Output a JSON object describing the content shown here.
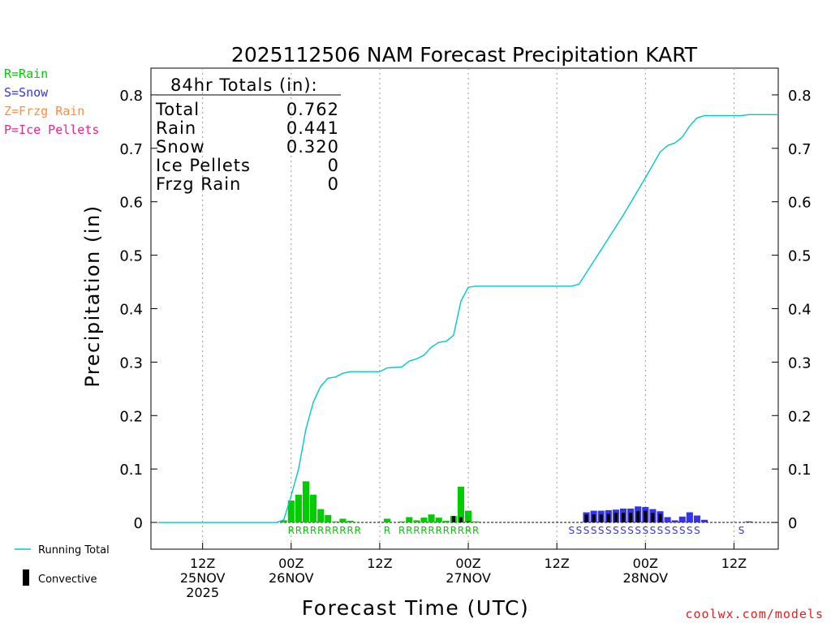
{
  "chart_data": {
    "type": "bar",
    "title": "2025112506 NAM Forecast Precipitation KART",
    "xlabel": "Forecast Time (UTC)",
    "ylabel": "Precipitation (in)",
    "ylim": [
      -0.05,
      0.85
    ],
    "y_ticks": [
      0,
      0.1,
      0.2,
      0.3,
      0.4,
      0.5,
      0.6,
      0.7,
      0.8
    ],
    "y_tick_labels": [
      "0",
      "0.1",
      "0.2",
      "0.3",
      "0.4",
      "0.5",
      "0.6",
      "0.7",
      "0.8"
    ],
    "x_range_hours": [
      -1,
      84
    ],
    "x_ticks": [
      {
        "hour": 6,
        "lines": [
          "12Z",
          "25NOV",
          "2025"
        ]
      },
      {
        "hour": 18,
        "lines": [
          "00Z",
          "26NOV"
        ]
      },
      {
        "hour": 30,
        "lines": [
          "12Z"
        ]
      },
      {
        "hour": 42,
        "lines": [
          "00Z",
          "27NOV"
        ]
      },
      {
        "hour": 54,
        "lines": [
          "12Z"
        ]
      },
      {
        "hour": 66,
        "lines": [
          "00Z",
          "28NOV"
        ]
      },
      {
        "hour": 78,
        "lines": [
          "12Z"
        ]
      }
    ],
    "legend_types": [
      {
        "label": "R=Rain",
        "color": "#00cc00"
      },
      {
        "label": "S=Snow",
        "color": "#3333ee"
      },
      {
        "label": "Z=Frzg Rain",
        "color": "#ff8c40"
      },
      {
        "label": "P=Ice Pellets",
        "color": "#ee2288"
      }
    ],
    "legend_lines": [
      {
        "label": "Running Total",
        "color": "#00c8c8"
      },
      {
        "label": "Convective",
        "color": "#000000"
      }
    ],
    "totals_box": {
      "heading": "84hr Totals (in):",
      "rows": [
        {
          "label": "Total",
          "value": "0.762"
        },
        {
          "label": "Rain",
          "value": "0.441"
        },
        {
          "label": "Snow",
          "value": "0.320"
        },
        {
          "label": "Ice Pellets",
          "value": "0"
        },
        {
          "label": "Frzg Rain",
          "value": "0"
        }
      ]
    },
    "series": [
      {
        "name": "Rain",
        "color": "#00cc00",
        "bars": [
          {
            "hour": 17,
            "value": 0.004
          },
          {
            "hour": 18,
            "value": 0.041
          },
          {
            "hour": 19,
            "value": 0.052
          },
          {
            "hour": 20,
            "value": 0.077
          },
          {
            "hour": 21,
            "value": 0.052
          },
          {
            "hour": 22,
            "value": 0.025
          },
          {
            "hour": 23,
            "value": 0.014
          },
          {
            "hour": 24,
            "value": 0.002
          },
          {
            "hour": 25,
            "value": 0.007
          },
          {
            "hour": 26,
            "value": 0.003
          },
          {
            "hour": 31,
            "value": 0.007
          },
          {
            "hour": 33,
            "value": 0.002
          },
          {
            "hour": 34,
            "value": 0.01
          },
          {
            "hour": 35,
            "value": 0.004
          },
          {
            "hour": 36,
            "value": 0.009
          },
          {
            "hour": 37,
            "value": 0.015
          },
          {
            "hour": 38,
            "value": 0.009
          },
          {
            "hour": 39,
            "value": 0.003
          },
          {
            "hour": 40,
            "value": 0.012
          },
          {
            "hour": 41,
            "value": 0.067
          },
          {
            "hour": 42,
            "value": 0.022
          },
          {
            "hour": 43,
            "value": 0.002
          }
        ]
      },
      {
        "name": "Snow",
        "color": "#3333ee",
        "bars": [
          {
            "hour": 58,
            "value": 0.019
          },
          {
            "hour": 59,
            "value": 0.022
          },
          {
            "hour": 60,
            "value": 0.022
          },
          {
            "hour": 61,
            "value": 0.023
          },
          {
            "hour": 62,
            "value": 0.024
          },
          {
            "hour": 63,
            "value": 0.026
          },
          {
            "hour": 64,
            "value": 0.026
          },
          {
            "hour": 65,
            "value": 0.03
          },
          {
            "hour": 66,
            "value": 0.029
          },
          {
            "hour": 67,
            "value": 0.025
          },
          {
            "hour": 68,
            "value": 0.021
          },
          {
            "hour": 69,
            "value": 0.01
          },
          {
            "hour": 70,
            "value": 0.004
          },
          {
            "hour": 71,
            "value": 0.011
          },
          {
            "hour": 72,
            "value": 0.019
          },
          {
            "hour": 73,
            "value": 0.013
          },
          {
            "hour": 74,
            "value": 0.005
          },
          {
            "hour": 80,
            "value": 0.002
          }
        ]
      },
      {
        "name": "Convective",
        "color": "#000000",
        "bars": [
          {
            "hour": 40,
            "value": 0.012
          },
          {
            "hour": 41,
            "value": 0.01
          },
          {
            "hour": 42,
            "value": 0.002
          },
          {
            "hour": 58,
            "value": 0.015
          },
          {
            "hour": 59,
            "value": 0.015
          },
          {
            "hour": 60,
            "value": 0.015
          },
          {
            "hour": 61,
            "value": 0.016
          },
          {
            "hour": 62,
            "value": 0.018
          },
          {
            "hour": 63,
            "value": 0.018
          },
          {
            "hour": 64,
            "value": 0.018
          },
          {
            "hour": 65,
            "value": 0.021
          },
          {
            "hour": 66,
            "value": 0.022
          },
          {
            "hour": 67,
            "value": 0.018
          },
          {
            "hour": 68,
            "value": 0.016
          }
        ]
      }
    ],
    "running_total": {
      "name": "Running Total",
      "color": "#00c8c8",
      "points": [
        [
          0,
          0
        ],
        [
          16,
          0
        ],
        [
          17,
          0.005
        ],
        [
          18,
          0.05
        ],
        [
          19,
          0.1
        ],
        [
          20,
          0.175
        ],
        [
          21,
          0.225
        ],
        [
          22,
          0.255
        ],
        [
          23,
          0.27
        ],
        [
          24,
          0.272
        ],
        [
          25,
          0.279
        ],
        [
          26,
          0.282
        ],
        [
          30,
          0.282
        ],
        [
          31,
          0.289
        ],
        [
          32,
          0.29
        ],
        [
          33,
          0.291
        ],
        [
          34,
          0.302
        ],
        [
          35,
          0.306
        ],
        [
          36,
          0.313
        ],
        [
          37,
          0.328
        ],
        [
          38,
          0.337
        ],
        [
          39,
          0.339
        ],
        [
          40,
          0.35
        ],
        [
          41,
          0.414
        ],
        [
          42,
          0.44
        ],
        [
          43,
          0.442
        ],
        [
          56,
          0.442
        ],
        [
          57,
          0.446
        ],
        [
          60,
          0.51
        ],
        [
          63,
          0.575
        ],
        [
          66,
          0.645
        ],
        [
          68,
          0.693
        ],
        [
          69,
          0.705
        ],
        [
          70,
          0.71
        ],
        [
          71,
          0.721
        ],
        [
          72,
          0.742
        ],
        [
          73,
          0.757
        ],
        [
          74,
          0.761
        ],
        [
          79,
          0.761
        ],
        [
          80,
          0.763
        ],
        [
          84,
          0.763
        ]
      ]
    },
    "type_codes": [
      {
        "letter": "R",
        "color": "#00cc00",
        "hours": [
          18,
          19,
          20,
          21,
          22,
          23,
          24,
          25,
          26,
          27,
          31,
          33,
          34,
          35,
          36,
          37,
          38,
          39,
          40,
          41,
          42,
          43
        ]
      },
      {
        "letter": "S",
        "color": "#3333ee",
        "hours": [
          56,
          57,
          58,
          59,
          60,
          61,
          62,
          63,
          64,
          65,
          66,
          67,
          68,
          69,
          70,
          71,
          72,
          73,
          79
        ]
      }
    ],
    "footer": "coolwx.com/models"
  }
}
